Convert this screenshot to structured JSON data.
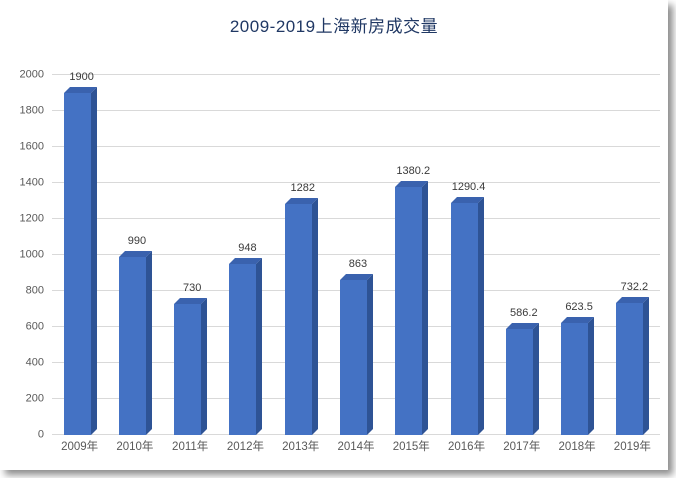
{
  "chart_data": {
    "type": "bar",
    "title": "2009-2019上海新房成交量",
    "categories": [
      "2009年",
      "2010年",
      "2011年",
      "2012年",
      "2013年",
      "2014年",
      "2015年",
      "2016年",
      "2017年",
      "2018年",
      "2019年"
    ],
    "values": [
      1900,
      990,
      730,
      948,
      1282,
      863,
      1380.2,
      1290.4,
      586.2,
      623.5,
      732.2
    ],
    "data_labels": [
      "1900",
      "990",
      "730",
      "948",
      "1282",
      "863",
      "1380.2",
      "1290.4",
      "586.2",
      "623.5",
      "732.2"
    ],
    "xlabel": "",
    "ylabel": "",
    "ylim": [
      0,
      2000
    ],
    "yticks": [
      0,
      200,
      400,
      600,
      800,
      1000,
      1200,
      1400,
      1600,
      1800,
      2000
    ],
    "grid": true,
    "legend_position": "none",
    "colors": {
      "bar_front": "#4472C4",
      "bar_side": "#2E5395",
      "bar_top": "#3A62AE",
      "gridline": "#D9D9D9",
      "title": "#203864",
      "tick_label": "#595959",
      "value_label": "#3A3A3A"
    }
  }
}
